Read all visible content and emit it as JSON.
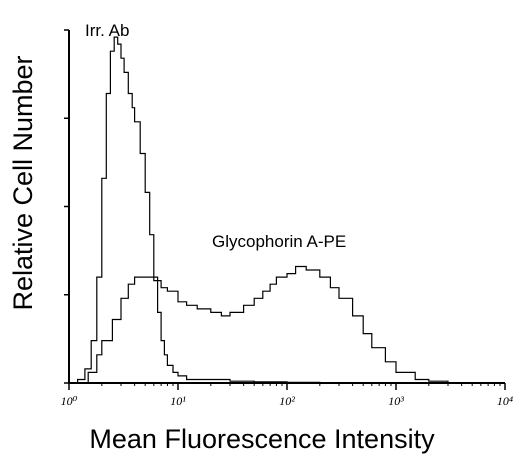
{
  "chart_data": {
    "type": "line",
    "title": "",
    "xlabel": "Mean Fluorescence Intensity",
    "ylabel": "Relative Cell Number",
    "x_scale": "log",
    "xlim": [
      1,
      10000
    ],
    "ylim": [
      0,
      100
    ],
    "grid": false,
    "x_ticks": [
      {
        "value": 1,
        "label": "10⁰"
      },
      {
        "value": 10,
        "label": "10¹"
      },
      {
        "value": 100,
        "label": "10²"
      },
      {
        "value": 1000,
        "label": "10³"
      },
      {
        "value": 10000,
        "label": "10⁴"
      }
    ],
    "y_ticks": [
      0,
      25,
      50,
      75,
      100
    ],
    "annotations": [
      "Irr. Ab",
      "Glycophorin A-PE"
    ],
    "series": [
      {
        "name": "Irr. Ab",
        "color": "#000000",
        "x": [
          1,
          1.2,
          1.4,
          1.6,
          1.8,
          2.0,
          2.2,
          2.4,
          2.6,
          2.8,
          3.0,
          3.2,
          3.5,
          3.8,
          4.0,
          4.5,
          5.0,
          5.5,
          6.0,
          6.5,
          7.0,
          7.5,
          8.0,
          9.0,
          10,
          12,
          15,
          20,
          30,
          50,
          100,
          200
        ],
        "y": [
          0,
          1,
          4,
          12,
          30,
          58,
          82,
          94,
          98,
          96,
          92,
          88,
          82,
          78,
          74,
          65,
          54,
          42,
          30,
          20,
          12,
          8,
          5,
          3,
          2,
          1,
          1,
          1,
          0.5,
          0.3,
          0.2,
          0
        ]
      },
      {
        "name": "Glycophorin A-PE",
        "color": "#000000",
        "x": [
          1.3,
          1.5,
          1.8,
          2.0,
          2.5,
          3.0,
          3.5,
          4.0,
          5.0,
          6.0,
          7.0,
          8.0,
          10,
          12,
          15,
          20,
          25,
          30,
          40,
          50,
          60,
          70,
          80,
          100,
          120,
          150,
          200,
          250,
          300,
          400,
          500,
          600,
          800,
          1000,
          1500,
          2000,
          3000
        ],
        "y": [
          0,
          3,
          8,
          12,
          18,
          24,
          28,
          30,
          30,
          29,
          27,
          26,
          23,
          22,
          21,
          20,
          19,
          20,
          22,
          24,
          26,
          28,
          30,
          31,
          33,
          32,
          30,
          27,
          24,
          19,
          14,
          10,
          6,
          3,
          1,
          0.5,
          0
        ]
      }
    ]
  }
}
